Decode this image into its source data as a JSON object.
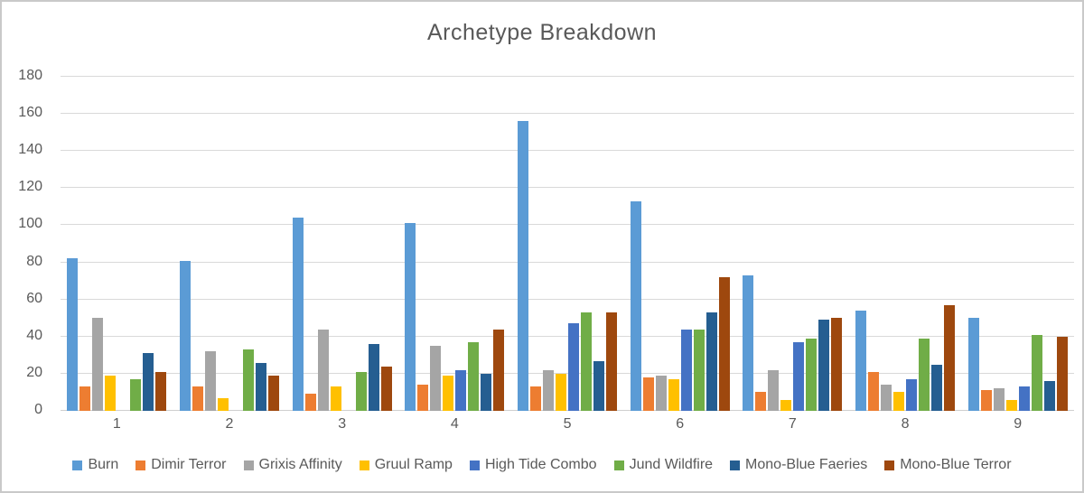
{
  "chart_data": {
    "type": "bar",
    "title": "Archetype Breakdown",
    "categories": [
      "1",
      "2",
      "3",
      "4",
      "5",
      "6",
      "7",
      "8",
      "9"
    ],
    "series": [
      {
        "name": "Burn",
        "color": "#5B9BD5",
        "values": [
          82,
          81,
          104,
          101,
          156,
          113,
          73,
          54,
          50
        ]
      },
      {
        "name": "Dimir Terror",
        "color": "#ED7D31",
        "values": [
          13,
          13,
          9,
          14,
          13,
          18,
          10,
          21,
          11
        ]
      },
      {
        "name": "Grixis Affinity",
        "color": "#A5A5A5",
        "values": [
          50,
          32,
          44,
          35,
          22,
          19,
          22,
          14,
          12
        ]
      },
      {
        "name": "Gruul Ramp",
        "color": "#FFC000",
        "values": [
          19,
          7,
          13,
          19,
          20,
          17,
          6,
          10,
          6
        ]
      },
      {
        "name": "High Tide Combo",
        "color": "#4472C4",
        "values": [
          0,
          0,
          0,
          22,
          47,
          44,
          37,
          17,
          13
        ]
      },
      {
        "name": "Jund Wildfire",
        "color": "#70AD47",
        "values": [
          17,
          33,
          21,
          37,
          53,
          44,
          39,
          39,
          41
        ]
      },
      {
        "name": "Mono-Blue Faeries",
        "color": "#255E91",
        "values": [
          31,
          26,
          36,
          20,
          27,
          53,
          49,
          25,
          16
        ]
      },
      {
        "name": "Mono-Blue Terror",
        "color": "#9E480E",
        "values": [
          21,
          19,
          24,
          44,
          53,
          72,
          50,
          57,
          40
        ]
      }
    ],
    "ylim": [
      0,
      180
    ],
    "ytick_step": 20,
    "xlabel": "",
    "ylabel": "",
    "grid": true,
    "legend_position": "bottom",
    "text_color": "#595959",
    "gridline_color": "#D9D9D9"
  }
}
